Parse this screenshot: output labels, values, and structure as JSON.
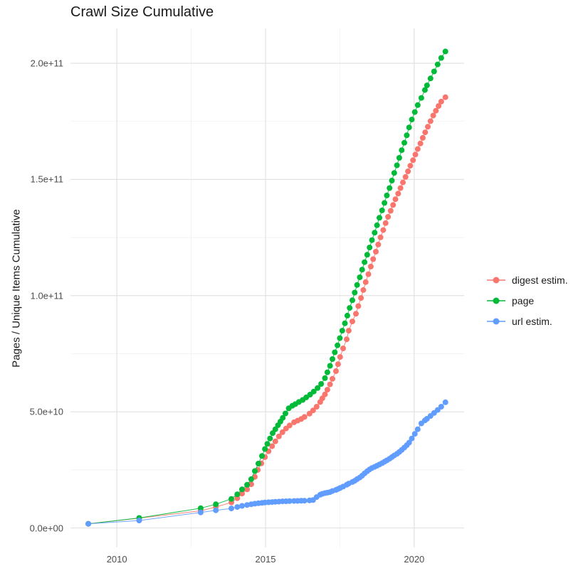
{
  "page": {
    "title": "Crawl Size Cumulative"
  },
  "axes": {
    "y_title": "Pages / Unique Items Cumulative",
    "x_tick_labels": [
      "2010",
      "2015",
      "2020"
    ],
    "y_tick_labels": [
      "0.0e+00",
      "5.0e+10",
      "1.0e+11",
      "1.5e+11",
      "2.0e+11"
    ]
  },
  "legend": {
    "items": [
      {
        "label": "digest estim.",
        "color": "#F8766D"
      },
      {
        "label": "page",
        "color": "#00BA38"
      },
      {
        "label": "url estim.",
        "color": "#619CFF"
      }
    ]
  },
  "chart_data": {
    "type": "scatter",
    "title": "Crawl Size Cumulative",
    "xlabel": "",
    "ylabel": "Pages / Unique Items Cumulative",
    "grid": true,
    "legend_position": "right",
    "x_unit": "year (date of crawl)",
    "y_scale": 1000000000.0,
    "y_unit": "points stored as billions; axis shown in scientific notation",
    "xlim": [
      2008.44,
      2021.68
    ],
    "ylim_billions": [
      -8.4,
      215
    ],
    "x_major_ticks": [
      2010,
      2015,
      2020
    ],
    "x_minor_ticks": [
      2012.5,
      2017.5
    ],
    "y_major_ticks_billions": [
      0,
      50,
      100,
      150,
      200
    ],
    "y_minor_ticks_billions": [
      25,
      75,
      125,
      175
    ],
    "marker_radius_px": 4,
    "series": [
      {
        "name": "digest estim.",
        "color": "#F8766D",
        "points_year_billions": [
          [
            2009.04,
            1.8
          ],
          [
            2010.75,
            4.2
          ],
          [
            2012.82,
            7.4
          ],
          [
            2013.33,
            9.0
          ],
          [
            2013.85,
            11.0
          ],
          [
            2014.05,
            12.8
          ],
          [
            2014.21,
            14.8
          ],
          [
            2014.38,
            16.6
          ],
          [
            2014.52,
            18.8
          ],
          [
            2014.64,
            22.0
          ],
          [
            2014.74,
            25.0
          ],
          [
            2014.86,
            27.8
          ],
          [
            2014.98,
            30.5
          ],
          [
            2015.1,
            33.0
          ],
          [
            2015.22,
            35.2
          ],
          [
            2015.33,
            37.3
          ],
          [
            2015.45,
            39.4
          ],
          [
            2015.57,
            41.2
          ],
          [
            2015.69,
            42.8
          ],
          [
            2015.81,
            44.1
          ],
          [
            2015.96,
            45.5
          ],
          [
            2016.08,
            46.2
          ],
          [
            2016.2,
            46.9
          ],
          [
            2016.31,
            47.8
          ],
          [
            2016.48,
            49.2
          ],
          [
            2016.6,
            50.6
          ],
          [
            2016.72,
            52.2
          ],
          [
            2016.84,
            54.2
          ],
          [
            2016.91,
            55.8
          ],
          [
            2017.0,
            57.5
          ],
          [
            2017.08,
            59.5
          ],
          [
            2017.17,
            61.8
          ],
          [
            2017.25,
            64.2
          ],
          [
            2017.37,
            67.5
          ],
          [
            2017.44,
            70.5
          ],
          [
            2017.51,
            73.6
          ],
          [
            2017.61,
            77.3
          ],
          [
            2017.73,
            81.2
          ],
          [
            2017.8,
            84.9
          ],
          [
            2017.92,
            88.9
          ],
          [
            2018.04,
            92.2
          ],
          [
            2018.12,
            95.5
          ],
          [
            2018.21,
            99.0
          ],
          [
            2018.29,
            102.4
          ],
          [
            2018.37,
            105.8
          ],
          [
            2018.46,
            109.2
          ],
          [
            2018.54,
            112.5
          ],
          [
            2018.62,
            115.7
          ],
          [
            2018.71,
            118.9
          ],
          [
            2018.79,
            122.0
          ],
          [
            2018.87,
            125.1
          ],
          [
            2018.96,
            128.2
          ],
          [
            2019.04,
            131.2
          ],
          [
            2019.12,
            133.9
          ],
          [
            2019.21,
            136.5
          ],
          [
            2019.29,
            139.0
          ],
          [
            2019.37,
            141.5
          ],
          [
            2019.46,
            143.9
          ],
          [
            2019.54,
            146.3
          ],
          [
            2019.62,
            148.7
          ],
          [
            2019.71,
            151.1
          ],
          [
            2019.79,
            153.5
          ],
          [
            2019.87,
            155.9
          ],
          [
            2019.96,
            158.3
          ],
          [
            2020.04,
            160.7
          ],
          [
            2020.12,
            163.1
          ],
          [
            2020.21,
            165.5
          ],
          [
            2020.29,
            167.9
          ],
          [
            2020.37,
            170.3
          ],
          [
            2020.46,
            172.7
          ],
          [
            2020.55,
            175.1
          ],
          [
            2020.64,
            177.5
          ],
          [
            2020.73,
            179.6
          ],
          [
            2020.82,
            181.6
          ],
          [
            2020.91,
            183.5
          ],
          [
            2021.05,
            185.4
          ]
        ]
      },
      {
        "name": "page",
        "color": "#00BA38",
        "points_year_billions": [
          [
            2009.04,
            1.8
          ],
          [
            2010.75,
            4.3
          ],
          [
            2012.82,
            8.5
          ],
          [
            2013.33,
            10.2
          ],
          [
            2013.85,
            12.5
          ],
          [
            2014.05,
            14.5
          ],
          [
            2014.21,
            16.6
          ],
          [
            2014.38,
            18.6
          ],
          [
            2014.52,
            21.0
          ],
          [
            2014.64,
            24.5
          ],
          [
            2014.76,
            27.7
          ],
          [
            2014.88,
            31.0
          ],
          [
            2014.98,
            34.0
          ],
          [
            2015.06,
            36.2
          ],
          [
            2015.15,
            38.5
          ],
          [
            2015.24,
            40.8
          ],
          [
            2015.33,
            42.5
          ],
          [
            2015.42,
            44.2
          ],
          [
            2015.5,
            45.8
          ],
          [
            2015.58,
            47.4
          ],
          [
            2015.67,
            49.3
          ],
          [
            2015.78,
            51.5
          ],
          [
            2015.9,
            52.6
          ],
          [
            2016.0,
            53.3
          ],
          [
            2016.12,
            54.2
          ],
          [
            2016.25,
            55.1
          ],
          [
            2016.37,
            56.2
          ],
          [
            2016.5,
            57.4
          ],
          [
            2016.62,
            58.7
          ],
          [
            2016.75,
            60.2
          ],
          [
            2016.87,
            62.0
          ],
          [
            2017.0,
            64.5
          ],
          [
            2017.08,
            67.0
          ],
          [
            2017.17,
            69.8
          ],
          [
            2017.25,
            72.7
          ],
          [
            2017.33,
            75.6
          ],
          [
            2017.42,
            78.6
          ],
          [
            2017.5,
            81.7
          ],
          [
            2017.58,
            84.9
          ],
          [
            2017.67,
            88.1
          ],
          [
            2017.75,
            91.4
          ],
          [
            2017.83,
            94.7
          ],
          [
            2017.92,
            98.0
          ],
          [
            2018.0,
            101.3
          ],
          [
            2018.08,
            104.6
          ],
          [
            2018.17,
            107.9
          ],
          [
            2018.25,
            111.2
          ],
          [
            2018.33,
            114.4
          ],
          [
            2018.42,
            117.6
          ],
          [
            2018.5,
            120.7
          ],
          [
            2018.58,
            123.9
          ],
          [
            2018.67,
            127.1
          ],
          [
            2018.75,
            130.3
          ],
          [
            2018.83,
            133.5
          ],
          [
            2018.92,
            136.7
          ],
          [
            2019.0,
            139.9
          ],
          [
            2019.08,
            143.1
          ],
          [
            2019.17,
            146.3
          ],
          [
            2019.25,
            149.5
          ],
          [
            2019.33,
            152.8
          ],
          [
            2019.42,
            156.1
          ],
          [
            2019.5,
            159.3
          ],
          [
            2019.58,
            162.6
          ],
          [
            2019.67,
            165.8
          ],
          [
            2019.75,
            169.0
          ],
          [
            2019.83,
            172.4
          ],
          [
            2019.92,
            175.8
          ],
          [
            2020.02,
            179.0
          ],
          [
            2020.12,
            182.0
          ],
          [
            2020.24,
            185.1
          ],
          [
            2020.36,
            188.5
          ],
          [
            2020.43,
            190.5
          ],
          [
            2020.55,
            193.5
          ],
          [
            2020.67,
            196.5
          ],
          [
            2020.79,
            199.5
          ],
          [
            2020.91,
            202.3
          ],
          [
            2021.05,
            205.1
          ]
        ]
      },
      {
        "name": "url estim.",
        "color": "#619CFF",
        "points_year_billions": [
          [
            2009.04,
            1.8
          ],
          [
            2010.75,
            3.2
          ],
          [
            2012.82,
            6.7
          ],
          [
            2013.33,
            7.6
          ],
          [
            2013.85,
            8.4
          ],
          [
            2014.05,
            9.0
          ],
          [
            2014.21,
            9.5
          ],
          [
            2014.38,
            9.9
          ],
          [
            2014.52,
            10.2
          ],
          [
            2014.64,
            10.45
          ],
          [
            2014.76,
            10.65
          ],
          [
            2014.88,
            10.8
          ],
          [
            2014.98,
            10.95
          ],
          [
            2015.1,
            11.05
          ],
          [
            2015.22,
            11.15
          ],
          [
            2015.33,
            11.25
          ],
          [
            2015.45,
            11.35
          ],
          [
            2015.57,
            11.45
          ],
          [
            2015.69,
            11.5
          ],
          [
            2015.81,
            11.55
          ],
          [
            2015.96,
            11.6
          ],
          [
            2016.08,
            11.65
          ],
          [
            2016.2,
            11.7
          ],
          [
            2016.31,
            11.75
          ],
          [
            2016.48,
            11.85
          ],
          [
            2016.6,
            12.0
          ],
          [
            2016.72,
            13.3
          ],
          [
            2016.84,
            14.3
          ],
          [
            2016.91,
            14.7
          ],
          [
            2017.0,
            15.0
          ],
          [
            2017.08,
            15.2
          ],
          [
            2017.17,
            15.45
          ],
          [
            2017.25,
            15.9
          ],
          [
            2017.37,
            16.4
          ],
          [
            2017.44,
            16.8
          ],
          [
            2017.51,
            17.2
          ],
          [
            2017.61,
            17.8
          ],
          [
            2017.73,
            18.6
          ],
          [
            2017.8,
            19.1
          ],
          [
            2017.92,
            19.8
          ],
          [
            2018.0,
            20.3
          ],
          [
            2018.08,
            21.0
          ],
          [
            2018.17,
            21.7
          ],
          [
            2018.25,
            22.5
          ],
          [
            2018.33,
            23.5
          ],
          [
            2018.42,
            24.4
          ],
          [
            2018.5,
            25.2
          ],
          [
            2018.58,
            25.8
          ],
          [
            2018.67,
            26.3
          ],
          [
            2018.75,
            26.8
          ],
          [
            2018.83,
            27.3
          ],
          [
            2018.92,
            27.9
          ],
          [
            2019.0,
            28.5
          ],
          [
            2019.08,
            29.1
          ],
          [
            2019.17,
            29.8
          ],
          [
            2019.25,
            30.5
          ],
          [
            2019.33,
            31.2
          ],
          [
            2019.42,
            31.9
          ],
          [
            2019.5,
            32.7
          ],
          [
            2019.58,
            33.6
          ],
          [
            2019.67,
            34.6
          ],
          [
            2019.75,
            35.6
          ],
          [
            2019.83,
            36.7
          ],
          [
            2019.92,
            38.5
          ],
          [
            2020.02,
            40.5
          ],
          [
            2020.12,
            42.5
          ],
          [
            2020.24,
            45.0
          ],
          [
            2020.36,
            46.3
          ],
          [
            2020.43,
            47.0
          ],
          [
            2020.55,
            48.2
          ],
          [
            2020.67,
            49.5
          ],
          [
            2020.79,
            50.8
          ],
          [
            2020.91,
            52.2
          ],
          [
            2021.05,
            54.1
          ]
        ]
      }
    ]
  }
}
